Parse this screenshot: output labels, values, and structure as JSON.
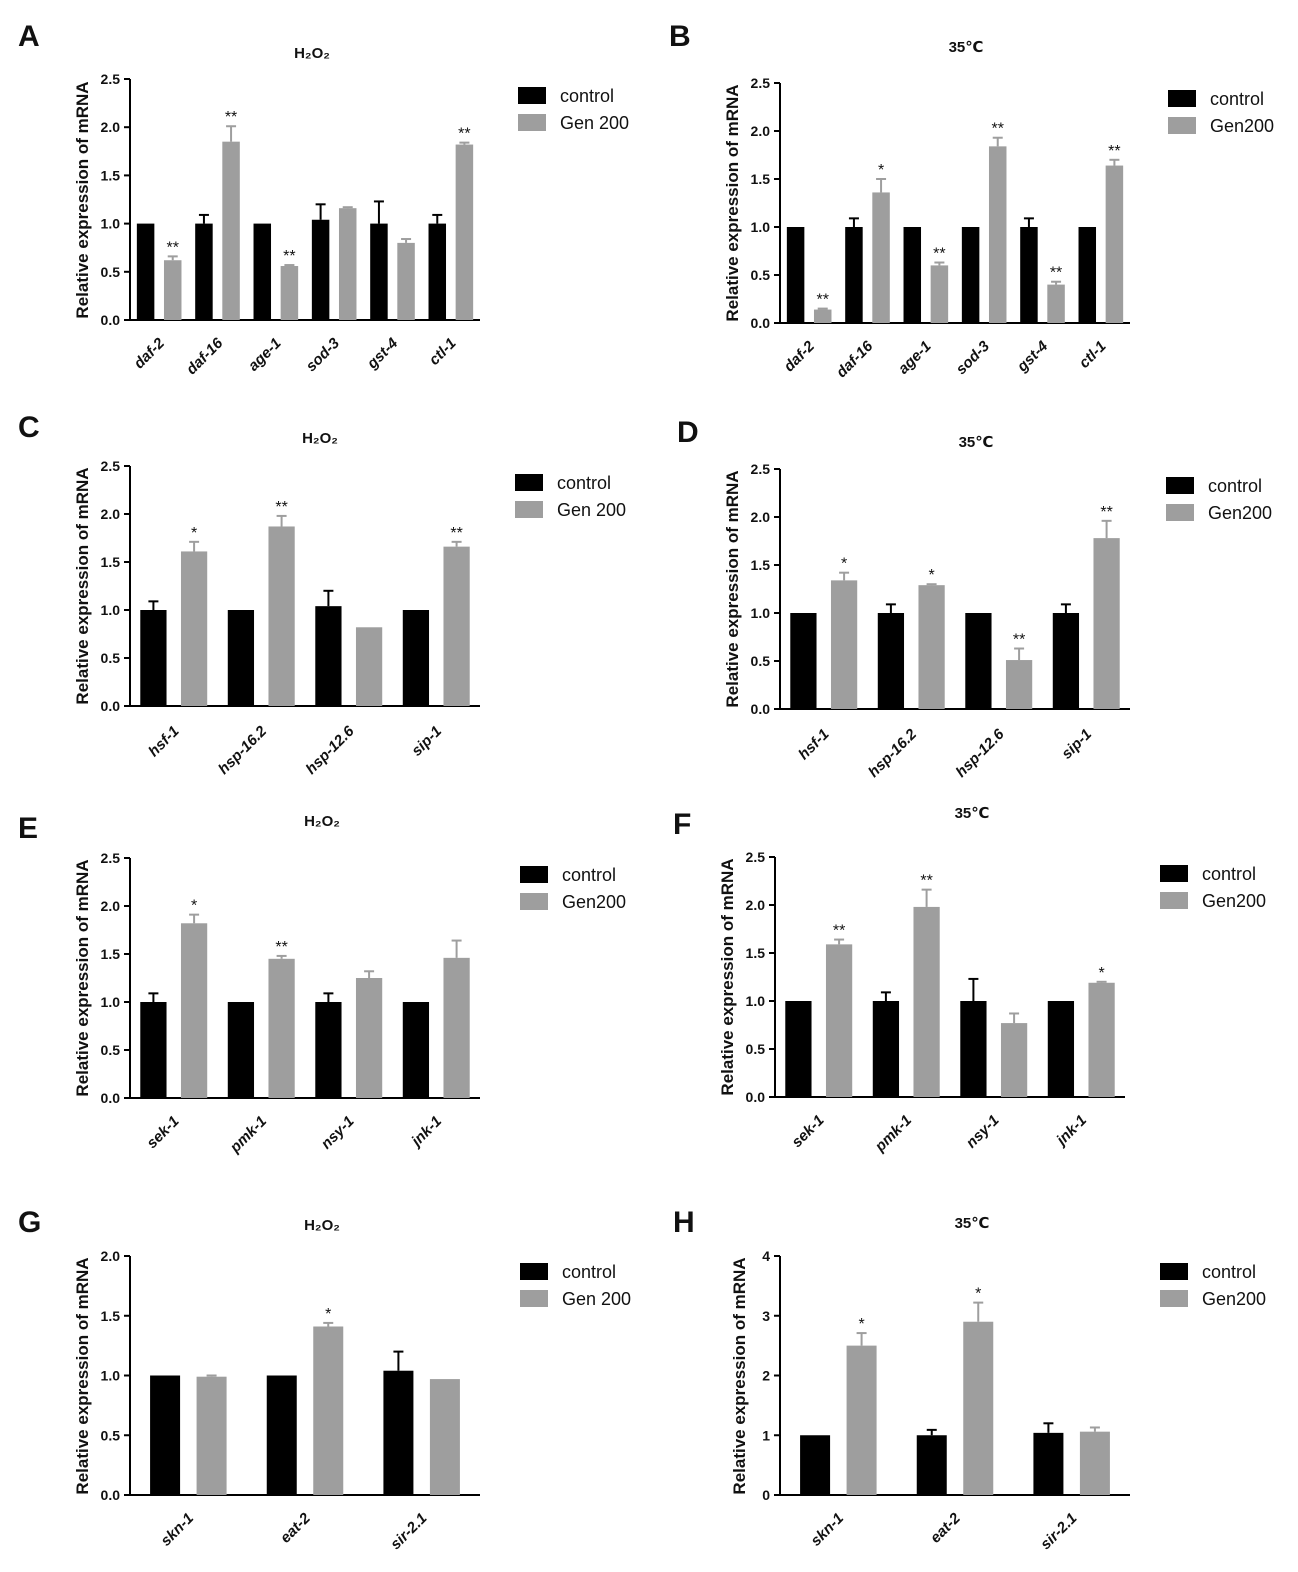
{
  "colors": {
    "control": "#000000",
    "treatment": "#9e9e9e",
    "axis": "#000000"
  },
  "chart_data": [
    {
      "panel": "A",
      "title": "H₂O₂",
      "type": "bar",
      "ylabel": "Relative expression of mRNA",
      "ylim": [
        0,
        2.5
      ],
      "ticks": [
        "0.0",
        "0.5",
        "1.0",
        "1.5",
        "2.0",
        "2.5"
      ],
      "categories": [
        "daf-2",
        "daf-16",
        "age-1",
        "sod-3",
        "gst-4",
        "ctl-1"
      ],
      "series": [
        {
          "name": "control",
          "values": [
            1.0,
            1.0,
            1.0,
            1.04,
            1.0,
            1.0
          ],
          "errors": [
            0.0,
            0.09,
            0.0,
            0.16,
            0.23,
            0.09
          ],
          "sig": [
            "",
            "",
            "",
            "",
            "",
            ""
          ]
        },
        {
          "name": "Gen 200",
          "values": [
            0.62,
            1.85,
            0.56,
            1.16,
            0.8,
            1.82
          ],
          "errors": [
            0.04,
            0.16,
            0.01,
            0.01,
            0.04,
            0.02
          ],
          "sig": [
            "**",
            "**",
            "**",
            "",
            "",
            "**"
          ]
        }
      ]
    },
    {
      "panel": "B",
      "title": "35℃",
      "type": "bar",
      "ylabel": "Relative expression of mRNA",
      "ylim": [
        0,
        2.5
      ],
      "ticks": [
        "0.0",
        "0.5",
        "1.0",
        "1.5",
        "2.0",
        "2.5"
      ],
      "categories": [
        "daf-2",
        "daf-16",
        "age-1",
        "sod-3",
        "gst-4",
        "ctl-1"
      ],
      "series": [
        {
          "name": "control",
          "values": [
            1.0,
            1.0,
            1.0,
            1.0,
            1.0,
            1.0
          ],
          "errors": [
            0.0,
            0.09,
            0.0,
            0.0,
            0.09,
            0.0
          ],
          "sig": [
            "",
            "",
            "",
            "",
            "",
            ""
          ]
        },
        {
          "name": "Gen200",
          "values": [
            0.14,
            1.36,
            0.6,
            1.84,
            0.4,
            1.64
          ],
          "errors": [
            0.01,
            0.14,
            0.03,
            0.09,
            0.03,
            0.06
          ],
          "sig": [
            "**",
            "*",
            "**",
            "**",
            "**",
            "**"
          ]
        }
      ]
    },
    {
      "panel": "C",
      "title": "H₂O₂",
      "type": "bar",
      "ylabel": "Relative expression of mRNA",
      "ylim": [
        0,
        2.5
      ],
      "ticks": [
        "0.0",
        "0.5",
        "1.0",
        "1.5",
        "2.0",
        "2.5"
      ],
      "categories": [
        "hsf-1",
        "hsp-16.2",
        "hsp-12.6",
        "sip-1"
      ],
      "series": [
        {
          "name": "control",
          "values": [
            1.0,
            1.0,
            1.04,
            1.0
          ],
          "errors": [
            0.09,
            0.0,
            0.16,
            0.0
          ],
          "sig": [
            "",
            "",
            "",
            ""
          ]
        },
        {
          "name": "Gen 200",
          "values": [
            1.61,
            1.87,
            0.82,
            1.66
          ],
          "errors": [
            0.1,
            0.11,
            0.0,
            0.05
          ],
          "sig": [
            "*",
            "**",
            "",
            "**"
          ]
        }
      ]
    },
    {
      "panel": "D",
      "title": "35℃",
      "type": "bar",
      "ylabel": "Relative expression of mRNA",
      "ylim": [
        0,
        2.5
      ],
      "ticks": [
        "0.0",
        "0.5",
        "1.0",
        "1.5",
        "2.0",
        "2.5"
      ],
      "categories": [
        "hsf-1",
        "hsp-16.2",
        "hsp-12.6",
        "sip-1"
      ],
      "series": [
        {
          "name": "control",
          "values": [
            1.0,
            1.0,
            1.0,
            1.0
          ],
          "errors": [
            0.0,
            0.09,
            0.0,
            0.09
          ],
          "sig": [
            "",
            "",
            "",
            ""
          ]
        },
        {
          "name": "Gen200",
          "values": [
            1.34,
            1.29,
            0.51,
            1.78
          ],
          "errors": [
            0.08,
            0.01,
            0.12,
            0.18
          ],
          "sig": [
            "*",
            "*",
            "**",
            "**"
          ]
        }
      ]
    },
    {
      "panel": "E",
      "title": "H₂O₂",
      "type": "bar",
      "ylabel": "Relative expression of mRNA",
      "ylim": [
        0,
        2.5
      ],
      "ticks": [
        "0.0",
        "0.5",
        "1.0",
        "1.5",
        "2.0",
        "2.5"
      ],
      "categories": [
        "sek-1",
        "pmk-1",
        "nsy-1",
        "jnk-1"
      ],
      "series": [
        {
          "name": "control",
          "values": [
            1.0,
            1.0,
            1.0,
            1.0
          ],
          "errors": [
            0.09,
            0.0,
            0.09,
            0.0
          ],
          "sig": [
            "",
            "",
            "",
            ""
          ]
        },
        {
          "name": "Gen200",
          "values": [
            1.82,
            1.45,
            1.25,
            1.46
          ],
          "errors": [
            0.09,
            0.03,
            0.07,
            0.18
          ],
          "sig": [
            "*",
            "**",
            "",
            ""
          ]
        }
      ]
    },
    {
      "panel": "F",
      "title": "35℃",
      "type": "bar",
      "ylabel": "Relative expression of mRNA",
      "ylim": [
        0,
        2.5
      ],
      "ticks": [
        "0.0",
        "0.5",
        "1.0",
        "1.5",
        "2.0",
        "2.5"
      ],
      "categories": [
        "sek-1",
        "pmk-1",
        "nsy-1",
        "jnk-1"
      ],
      "series": [
        {
          "name": "control",
          "values": [
            1.0,
            1.0,
            1.0,
            1.0
          ],
          "errors": [
            0.0,
            0.09,
            0.23,
            0.0
          ],
          "sig": [
            "",
            "",
            "",
            ""
          ]
        },
        {
          "name": "Gen200",
          "values": [
            1.59,
            1.98,
            0.77,
            1.19
          ],
          "errors": [
            0.05,
            0.18,
            0.1,
            0.01
          ],
          "sig": [
            "**",
            "**",
            "",
            "*"
          ]
        }
      ]
    },
    {
      "panel": "G",
      "title": "H₂O₂",
      "type": "bar",
      "ylabel": "Relative expression of mRNA",
      "ylim": [
        0,
        2.0
      ],
      "ticks": [
        "0.0",
        "0.5",
        "1.0",
        "1.5",
        "2.0"
      ],
      "categories": [
        "skn-1",
        "eat-2",
        "sir-2.1"
      ],
      "series": [
        {
          "name": "control",
          "values": [
            1.0,
            1.0,
            1.04
          ],
          "errors": [
            0.0,
            0.0,
            0.16
          ],
          "sig": [
            "",
            "",
            ""
          ]
        },
        {
          "name": "Gen 200",
          "values": [
            0.99,
            1.41,
            0.97
          ],
          "errors": [
            0.01,
            0.03,
            0.0
          ],
          "sig": [
            "",
            "*",
            ""
          ]
        }
      ]
    },
    {
      "panel": "H",
      "title": "35℃",
      "type": "bar",
      "ylabel": "Relative expression of mRNA",
      "ylim": [
        0,
        4
      ],
      "ticks": [
        "0",
        "1",
        "2",
        "3",
        "4"
      ],
      "categories": [
        "skn-1",
        "eat-2",
        "sir-2.1"
      ],
      "series": [
        {
          "name": "control",
          "values": [
            1.0,
            1.0,
            1.04
          ],
          "errors": [
            0.0,
            0.09,
            0.16
          ],
          "sig": [
            "",
            "",
            ""
          ]
        },
        {
          "name": "Gen200",
          "values": [
            2.5,
            2.9,
            1.06
          ],
          "errors": [
            0.21,
            0.32,
            0.07
          ],
          "sig": [
            "*",
            "*",
            ""
          ]
        }
      ]
    }
  ]
}
